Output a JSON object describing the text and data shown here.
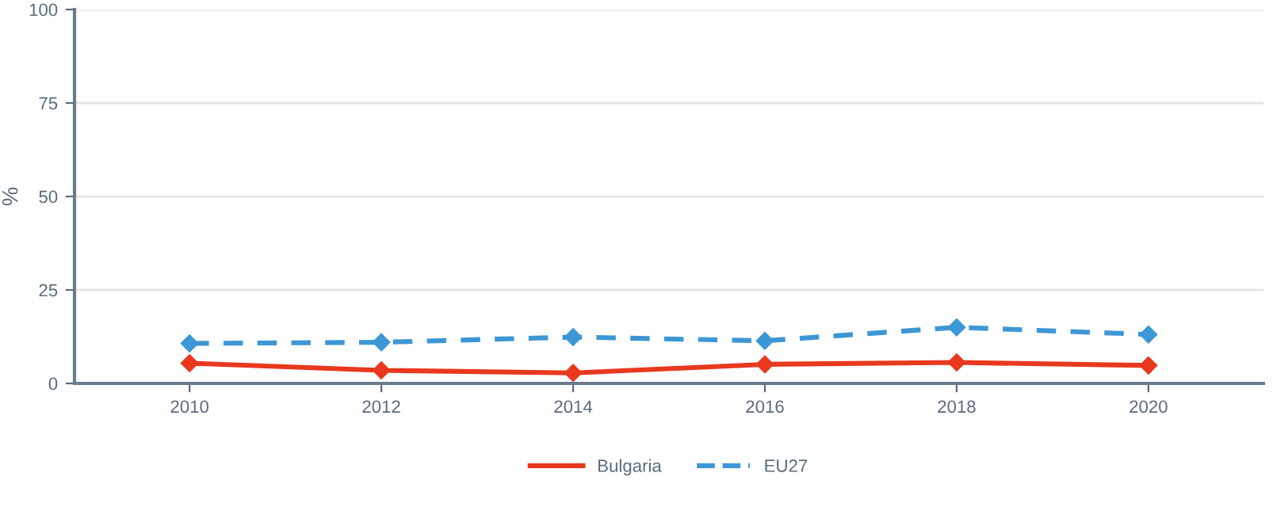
{
  "chart_data": {
    "type": "line",
    "ylabel": "%",
    "x": [
      2010,
      2012,
      2014,
      2016,
      2018,
      2020
    ],
    "series": [
      {
        "name": "Bulgaria",
        "color": "#e8391f",
        "values": [
          5.4,
          3.5,
          2.8,
          5.1,
          5.6,
          4.8
        ],
        "line_style": "solid"
      },
      {
        "name": "EU27",
        "color": "#3d97d6",
        "values": [
          10.7,
          11.0,
          12.4,
          11.4,
          15.0,
          13.1
        ],
        "line_style": "dashed"
      }
    ],
    "marker": "diamond",
    "xlim": [
      2008.8,
      2021.2
    ],
    "xticks": [
      2010,
      2012,
      2014,
      2016,
      2018,
      2020
    ],
    "ylim": [
      0,
      100
    ],
    "yticks": [
      0,
      25,
      50,
      75,
      100
    ],
    "grid": "y",
    "legend": "bottom"
  }
}
